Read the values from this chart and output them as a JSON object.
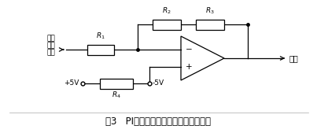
{
  "title": "图3   PI控制器零点调节与增益放大电路",
  "title_fontsize": 9,
  "background_color": "#ffffff",
  "line_color": "#000000",
  "text_color": "#000000",
  "labels": {
    "input_line1": "误差",
    "input_line2": "信号",
    "input_line3": "输入",
    "output": "输出",
    "vplus": "+5V",
    "vminus": "-5V"
  },
  "resistor_labels": [
    "R_1",
    "R_2",
    "R_3",
    "R_4"
  ],
  "op_minus": "-",
  "op_plus": "+"
}
